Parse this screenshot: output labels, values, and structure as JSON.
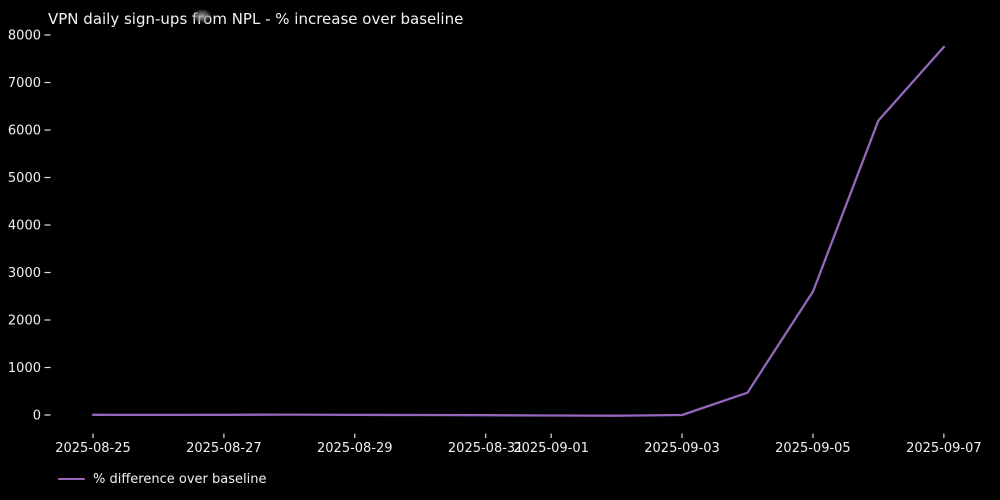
{
  "window": {
    "background_color": "#000000",
    "text_color": "#f0f0f0"
  },
  "chart_data": {
    "type": "line",
    "title": "VPN daily sign-ups from NPL - % increase over baseline",
    "xlabel": "",
    "ylabel": "",
    "x": [
      "2025-08-25",
      "2025-08-26",
      "2025-08-27",
      "2025-08-28",
      "2025-08-29",
      "2025-08-30",
      "2025-08-31",
      "2025-09-01",
      "2025-09-02",
      "2025-09-03",
      "2025-09-04",
      "2025-09-05",
      "2025-09-06",
      "2025-09-07"
    ],
    "series": [
      {
        "name": "% difference over baseline",
        "color": "#9467bd",
        "values": [
          5,
          3,
          4,
          8,
          2,
          0,
          -5,
          -10,
          -15,
          0,
          470,
          2600,
          6200,
          7750
        ]
      }
    ],
    "xticks": [
      "2025-08-25",
      "2025-08-27",
      "2025-08-29",
      "2025-08-31",
      "2025-09-01",
      "2025-09-03",
      "2025-09-05",
      "2025-09-07"
    ],
    "yticks": [
      0,
      1000,
      2000,
      3000,
      4000,
      5000,
      6000,
      7000,
      8000
    ],
    "ylim": [
      -400,
      8400
    ],
    "grid": false,
    "legend_position": "lower-left",
    "background": "#000000",
    "tick_color": "#e0e0e0"
  },
  "legend": {
    "label": "% difference over baseline"
  },
  "artifacts": {
    "cursor_smudge": "blurred gray cursor spot over title word 'from'"
  }
}
